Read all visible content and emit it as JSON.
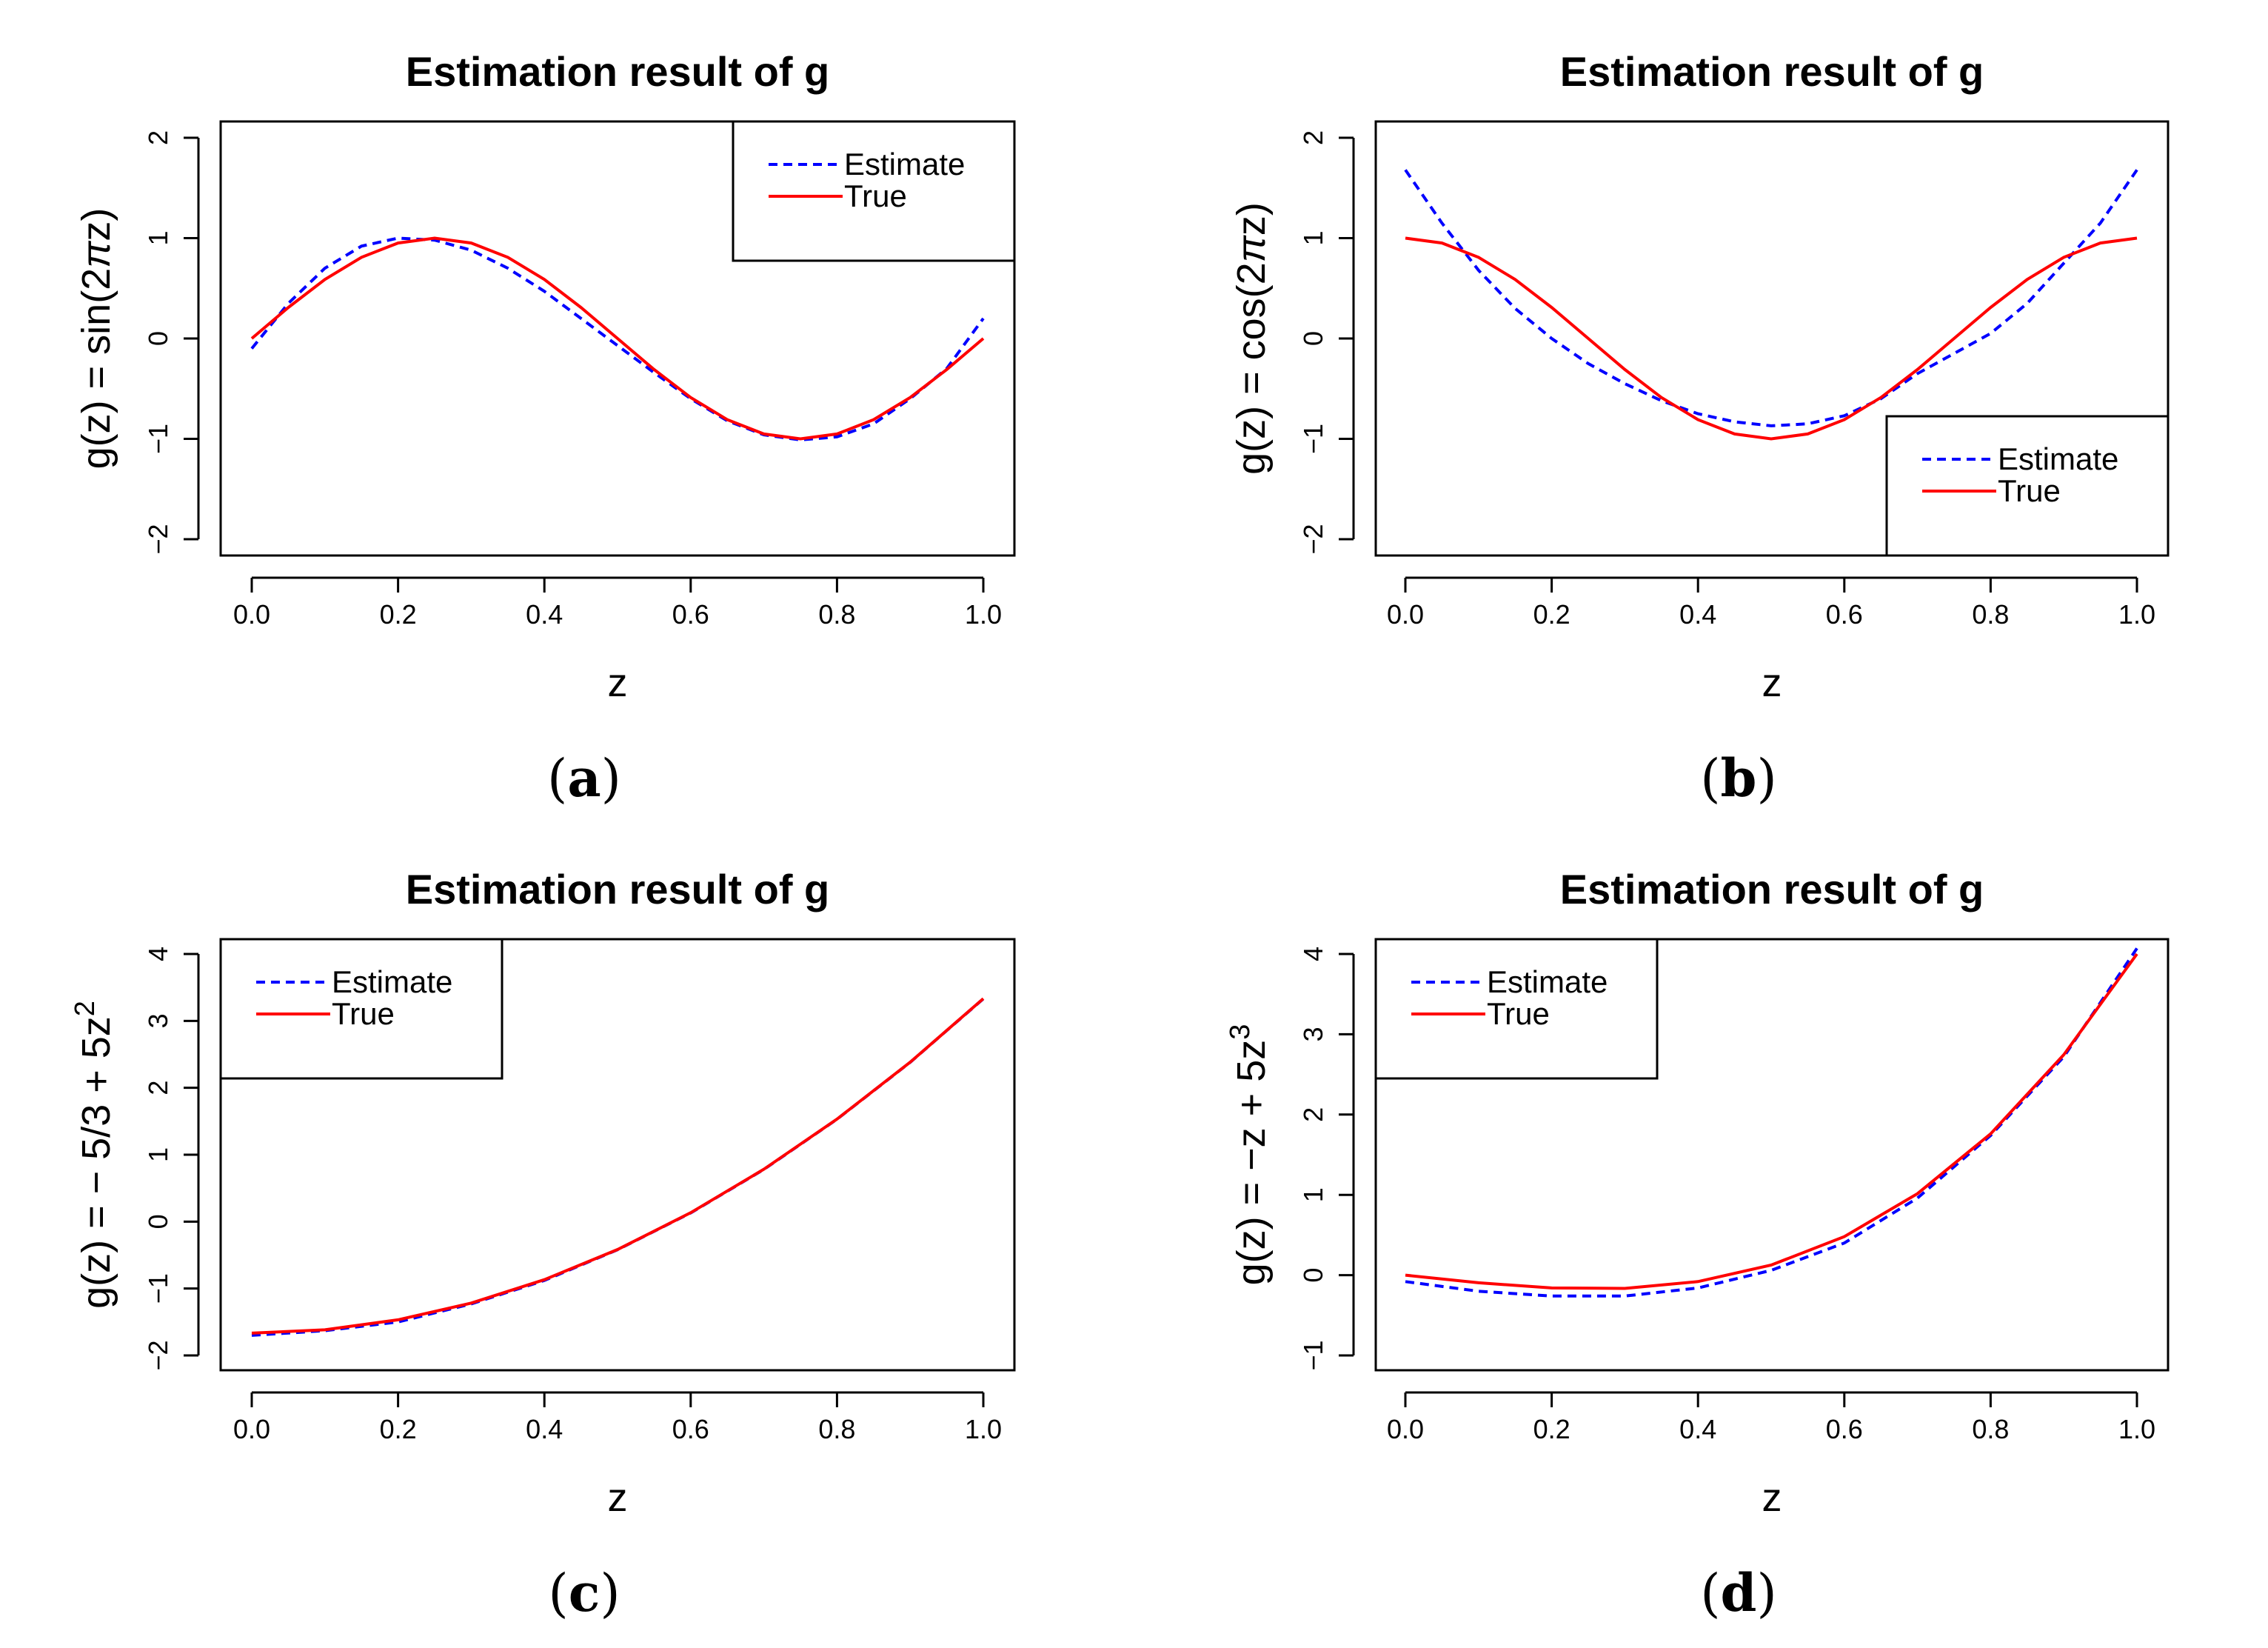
{
  "chart_data": [
    {
      "type": "line",
      "panel_label": "(a)",
      "title": "Estimation result of g",
      "xlabel": "z",
      "ylabel_parts": [
        {
          "t": "g(z) = sin(2"
        },
        {
          "t": "π",
          "italic": true
        },
        {
          "t": "z)"
        }
      ],
      "xlim": [
        0,
        1
      ],
      "ylim": [
        -2,
        2
      ],
      "xticks": [
        "0.0",
        "0.2",
        "0.4",
        "0.6",
        "0.8",
        "1.0"
      ],
      "yticks": [
        "-2",
        "-1",
        "0",
        "1",
        "2"
      ],
      "legend": {
        "position": "top-right",
        "entries": [
          "Estimate",
          "True"
        ]
      },
      "series": [
        {
          "name": "Estimate",
          "color": "#0000ff",
          "style": "dashed",
          "x": [
            0,
            0.05,
            0.1,
            0.15,
            0.2,
            0.25,
            0.3,
            0.35,
            0.4,
            0.45,
            0.5,
            0.55,
            0.6,
            0.65,
            0.7,
            0.75,
            0.8,
            0.85,
            0.9,
            0.95,
            1.0
          ],
          "y": [
            -0.1,
            0.35,
            0.7,
            0.92,
            1.0,
            0.98,
            0.88,
            0.7,
            0.47,
            0.2,
            -0.07,
            -0.34,
            -0.6,
            -0.82,
            -0.96,
            -1.01,
            -0.98,
            -0.85,
            -0.6,
            -0.3,
            0.2
          ]
        },
        {
          "name": "True",
          "color": "#ff0000",
          "style": "solid",
          "x": [
            0,
            0.05,
            0.1,
            0.15,
            0.2,
            0.25,
            0.3,
            0.35,
            0.4,
            0.45,
            0.5,
            0.55,
            0.6,
            0.65,
            0.7,
            0.75,
            0.8,
            0.85,
            0.9,
            0.95,
            1.0
          ],
          "y": [
            0,
            0.309,
            0.588,
            0.809,
            0.951,
            1.0,
            0.951,
            0.809,
            0.588,
            0.309,
            0,
            -0.309,
            -0.588,
            -0.809,
            -0.951,
            -1.0,
            -0.951,
            -0.809,
            -0.588,
            -0.309,
            0
          ]
        }
      ]
    },
    {
      "type": "line",
      "panel_label": "(b)",
      "title": "Estimation result of g",
      "xlabel": "z",
      "ylabel_parts": [
        {
          "t": "g(z) = cos(2"
        },
        {
          "t": "π",
          "italic": true
        },
        {
          "t": "z)"
        }
      ],
      "xlim": [
        0,
        1
      ],
      "ylim": [
        -2,
        2
      ],
      "xticks": [
        "0.0",
        "0.2",
        "0.4",
        "0.6",
        "0.8",
        "1.0"
      ],
      "yticks": [
        "-2",
        "-1",
        "0",
        "1",
        "2"
      ],
      "legend": {
        "position": "bottom-right",
        "entries": [
          "Estimate",
          "True"
        ]
      },
      "series": [
        {
          "name": "Estimate",
          "color": "#0000ff",
          "style": "dashed",
          "x": [
            0,
            0.05,
            0.1,
            0.15,
            0.2,
            0.25,
            0.3,
            0.35,
            0.4,
            0.45,
            0.5,
            0.55,
            0.6,
            0.65,
            0.7,
            0.75,
            0.8,
            0.85,
            0.9,
            0.95,
            1.0
          ],
          "y": [
            1.68,
            1.15,
            0.68,
            0.3,
            0.0,
            -0.25,
            -0.45,
            -0.62,
            -0.75,
            -0.83,
            -0.87,
            -0.85,
            -0.77,
            -0.6,
            -0.35,
            -0.15,
            0.05,
            0.35,
            0.75,
            1.15,
            1.68
          ]
        },
        {
          "name": "True",
          "color": "#ff0000",
          "style": "solid",
          "x": [
            0,
            0.05,
            0.1,
            0.15,
            0.2,
            0.25,
            0.3,
            0.35,
            0.4,
            0.45,
            0.5,
            0.55,
            0.6,
            0.65,
            0.7,
            0.75,
            0.8,
            0.85,
            0.9,
            0.95,
            1.0
          ],
          "y": [
            1.0,
            0.951,
            0.809,
            0.588,
            0.309,
            0,
            -0.309,
            -0.588,
            -0.809,
            -0.951,
            -1.0,
            -0.951,
            -0.809,
            -0.588,
            -0.309,
            0,
            0.309,
            0.588,
            0.809,
            0.951,
            1.0
          ]
        }
      ]
    },
    {
      "type": "line",
      "panel_label": "(c)",
      "title": "Estimation result of g",
      "xlabel": "z",
      "ylabel_parts": [
        {
          "t": "g(z) = − 5/3 + 5z"
        },
        {
          "t": "2",
          "sup": true
        }
      ],
      "xlim": [
        0,
        1
      ],
      "ylim": [
        -2,
        4
      ],
      "xticks": [
        "0.0",
        "0.2",
        "0.4",
        "0.6",
        "0.8",
        "1.0"
      ],
      "yticks": [
        "-2",
        "-1",
        "0",
        "1",
        "2",
        "3",
        "4"
      ],
      "legend": {
        "position": "top-left",
        "entries": [
          "Estimate",
          "True"
        ]
      },
      "series": [
        {
          "name": "Estimate",
          "color": "#0000ff",
          "style": "dashed",
          "x": [
            0,
            0.1,
            0.2,
            0.3,
            0.4,
            0.5,
            0.6,
            0.7,
            0.8,
            0.9,
            1.0
          ],
          "y": [
            -1.7,
            -1.63,
            -1.5,
            -1.23,
            -0.88,
            -0.42,
            0.13,
            0.78,
            1.53,
            2.38,
            3.33
          ]
        },
        {
          "name": "True",
          "color": "#ff0000",
          "style": "solid",
          "x": [
            0,
            0.1,
            0.2,
            0.3,
            0.4,
            0.5,
            0.6,
            0.7,
            0.8,
            0.9,
            1.0
          ],
          "y": [
            -1.667,
            -1.617,
            -1.467,
            -1.217,
            -0.867,
            -0.417,
            0.133,
            0.783,
            1.533,
            2.383,
            3.333
          ]
        }
      ]
    },
    {
      "type": "line",
      "panel_label": "(d)",
      "title": "Estimation result of g",
      "xlabel": "z",
      "ylabel_parts": [
        {
          "t": "g(z) = −z + 5z"
        },
        {
          "t": "3",
          "sup": true
        }
      ],
      "xlim": [
        0,
        1
      ],
      "ylim": [
        -1,
        4
      ],
      "xticks": [
        "0.0",
        "0.2",
        "0.4",
        "0.6",
        "0.8",
        "1.0"
      ],
      "yticks": [
        "-1",
        "0",
        "1",
        "2",
        "3",
        "4"
      ],
      "legend": {
        "position": "top-left",
        "entries": [
          "Estimate",
          "True"
        ]
      },
      "series": [
        {
          "name": "Estimate",
          "color": "#0000ff",
          "style": "dashed",
          "x": [
            0,
            0.1,
            0.2,
            0.3,
            0.4,
            0.5,
            0.6,
            0.7,
            0.8,
            0.9,
            1.0
          ],
          "y": [
            -0.08,
            -0.2,
            -0.26,
            -0.26,
            -0.16,
            0.06,
            0.4,
            0.96,
            1.74,
            2.72,
            4.07
          ]
        },
        {
          "name": "True",
          "color": "#ff0000",
          "style": "solid",
          "x": [
            0,
            0.1,
            0.2,
            0.3,
            0.4,
            0.5,
            0.6,
            0.7,
            0.8,
            0.9,
            1.0
          ],
          "y": [
            0,
            -0.095,
            -0.16,
            -0.165,
            -0.08,
            0.125,
            0.48,
            1.015,
            1.76,
            2.745,
            4.0
          ]
        }
      ]
    }
  ]
}
